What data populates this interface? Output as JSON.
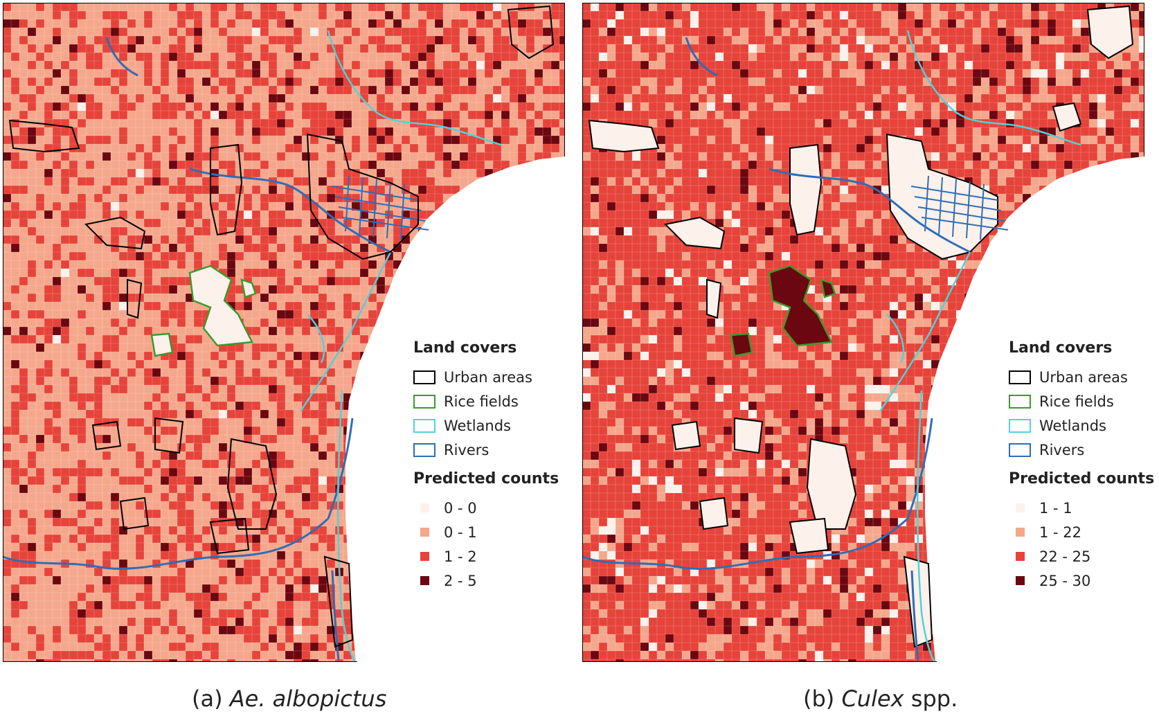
{
  "panels": [
    {
      "id": "a",
      "caption_label": "(a)",
      "caption_species": "Ae. albopictus",
      "caption_suffix": "",
      "legend": {
        "land_title": "Land covers",
        "land_items": [
          {
            "label": "Urban areas",
            "color": "#000000"
          },
          {
            "label": "Rice fields",
            "color": "#3a9a2a"
          },
          {
            "label": "Wetlands",
            "color": "#4fd3d8"
          },
          {
            "label": "Rivers",
            "color": "#2f6db5"
          }
        ],
        "count_title": "Predicted counts",
        "count_items": [
          {
            "label": "0 - 0",
            "color": "#fdf1ec"
          },
          {
            "label": "0 - 1",
            "color": "#f5a78c"
          },
          {
            "label": "1 - 2",
            "color": "#e6433a"
          },
          {
            "label": "2 - 5",
            "color": "#6b0710"
          }
        ]
      }
    },
    {
      "id": "b",
      "caption_label": "(b)",
      "caption_species": "Culex",
      "caption_suffix": "spp.",
      "legend": {
        "land_title": "Land covers",
        "land_items": [
          {
            "label": "Urban areas",
            "color": "#000000"
          },
          {
            "label": "Rice fields",
            "color": "#3a9a2a"
          },
          {
            "label": "Wetlands",
            "color": "#4fd3d8"
          },
          {
            "label": "Rivers",
            "color": "#2f6db5"
          }
        ],
        "count_title": "Predicted counts",
        "count_items": [
          {
            "label": "1 - 1",
            "color": "#fdf1ec"
          },
          {
            "label": "1 - 22",
            "color": "#f5a78c"
          },
          {
            "label": "22 - 25",
            "color": "#e6433a"
          },
          {
            "label": "25 - 30",
            "color": "#6b0710"
          }
        ]
      }
    }
  ]
}
